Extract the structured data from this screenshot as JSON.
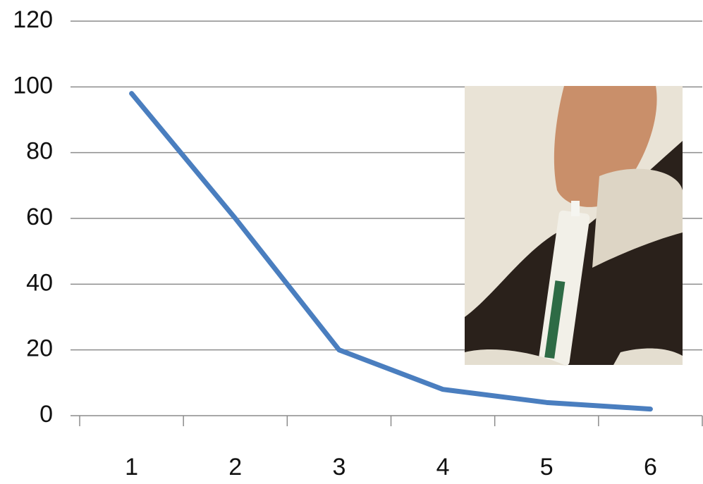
{
  "chart_data": {
    "type": "line",
    "categories": [
      "1",
      "2",
      "3",
      "4",
      "5",
      "6"
    ],
    "series": [
      {
        "color": "#4a7ebf",
        "values": [
          98,
          60,
          20,
          8,
          4,
          2
        ]
      }
    ],
    "ylim": [
      0,
      120
    ],
    "yticks": [
      0,
      20,
      40,
      60,
      80,
      100,
      120
    ],
    "grid": true
  }
}
